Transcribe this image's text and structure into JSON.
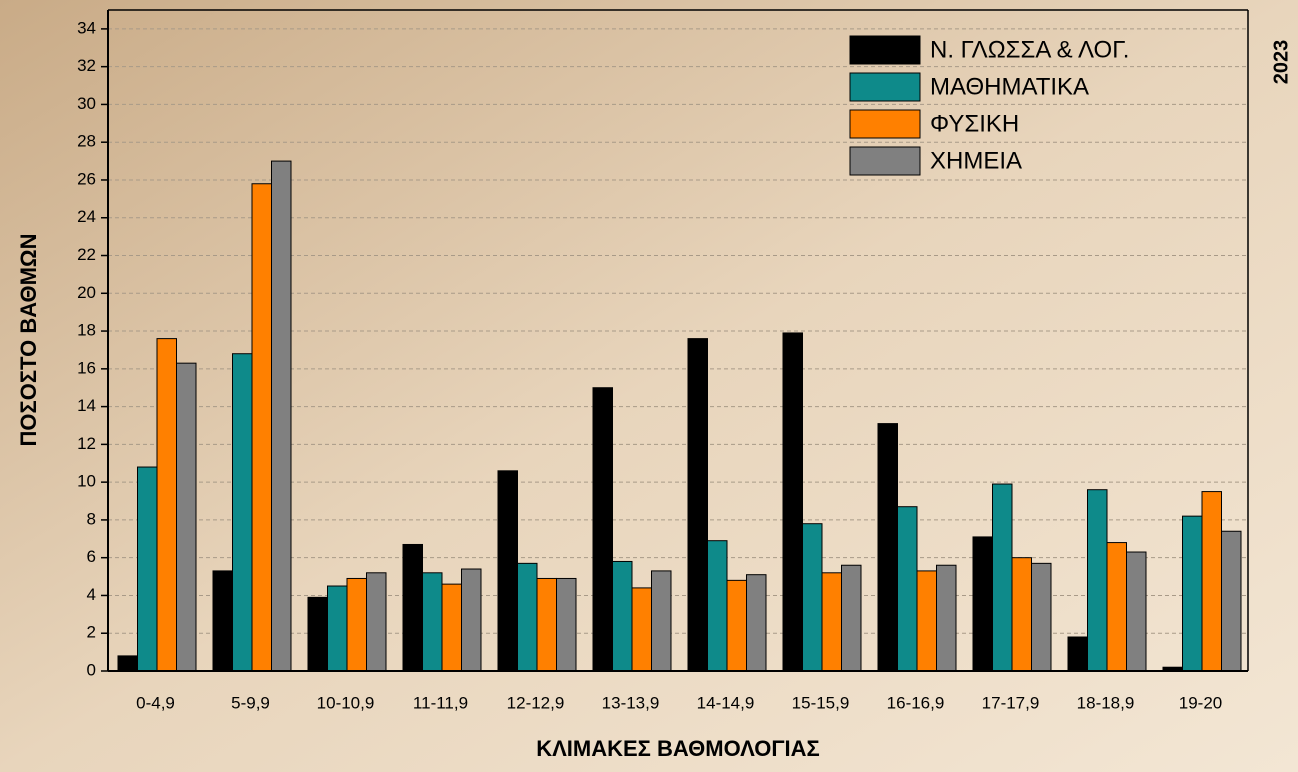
{
  "chart_data": {
    "type": "bar",
    "annotation": "2023",
    "xlabel": "ΚΛΙΜΑΚΕΣ ΒΑΘΜΟΛΟΓΙΑΣ",
    "ylabel": "ΠΟΣΟΣΤΟ ΒΑΘΜΩΝ",
    "categories": [
      "0-4,9",
      "5-9,9",
      "10-10,9",
      "11-11,9",
      "12-12,9",
      "13-13,9",
      "14-14,9",
      "15-15,9",
      "16-16,9",
      "17-17,9",
      "18-18,9",
      "19-20"
    ],
    "series": [
      {
        "name": "Ν. ΓΛΩΣΣΑ & ΛΟΓ.",
        "color": "#000000",
        "values": [
          0.8,
          5.3,
          3.9,
          6.7,
          10.6,
          15.0,
          17.6,
          17.9,
          13.1,
          7.1,
          1.8,
          0.2
        ]
      },
      {
        "name": "ΜΑΘΗΜΑΤΙΚΑ",
        "color": "#0e8a8a",
        "values": [
          10.8,
          16.8,
          4.5,
          5.2,
          5.7,
          5.8,
          6.9,
          7.8,
          8.7,
          9.9,
          9.6,
          8.2
        ]
      },
      {
        "name": "ΦΥΣΙΚΗ",
        "color": "#ff8000",
        "values": [
          17.6,
          25.8,
          4.9,
          4.6,
          4.9,
          4.4,
          4.8,
          5.2,
          5.3,
          6.0,
          6.8,
          9.5
        ]
      },
      {
        "name": "ΧΗΜΕΙΑ",
        "color": "#808080",
        "values": [
          16.3,
          27.0,
          5.2,
          5.4,
          4.9,
          5.3,
          5.1,
          5.6,
          5.6,
          5.7,
          6.3,
          7.4
        ]
      }
    ],
    "ylim": [
      0,
      35
    ],
    "yticks": [
      0,
      2,
      4,
      6,
      8,
      10,
      12,
      14,
      16,
      18,
      20,
      22,
      24,
      26,
      28,
      30,
      32,
      34
    ],
    "grid": true
  }
}
